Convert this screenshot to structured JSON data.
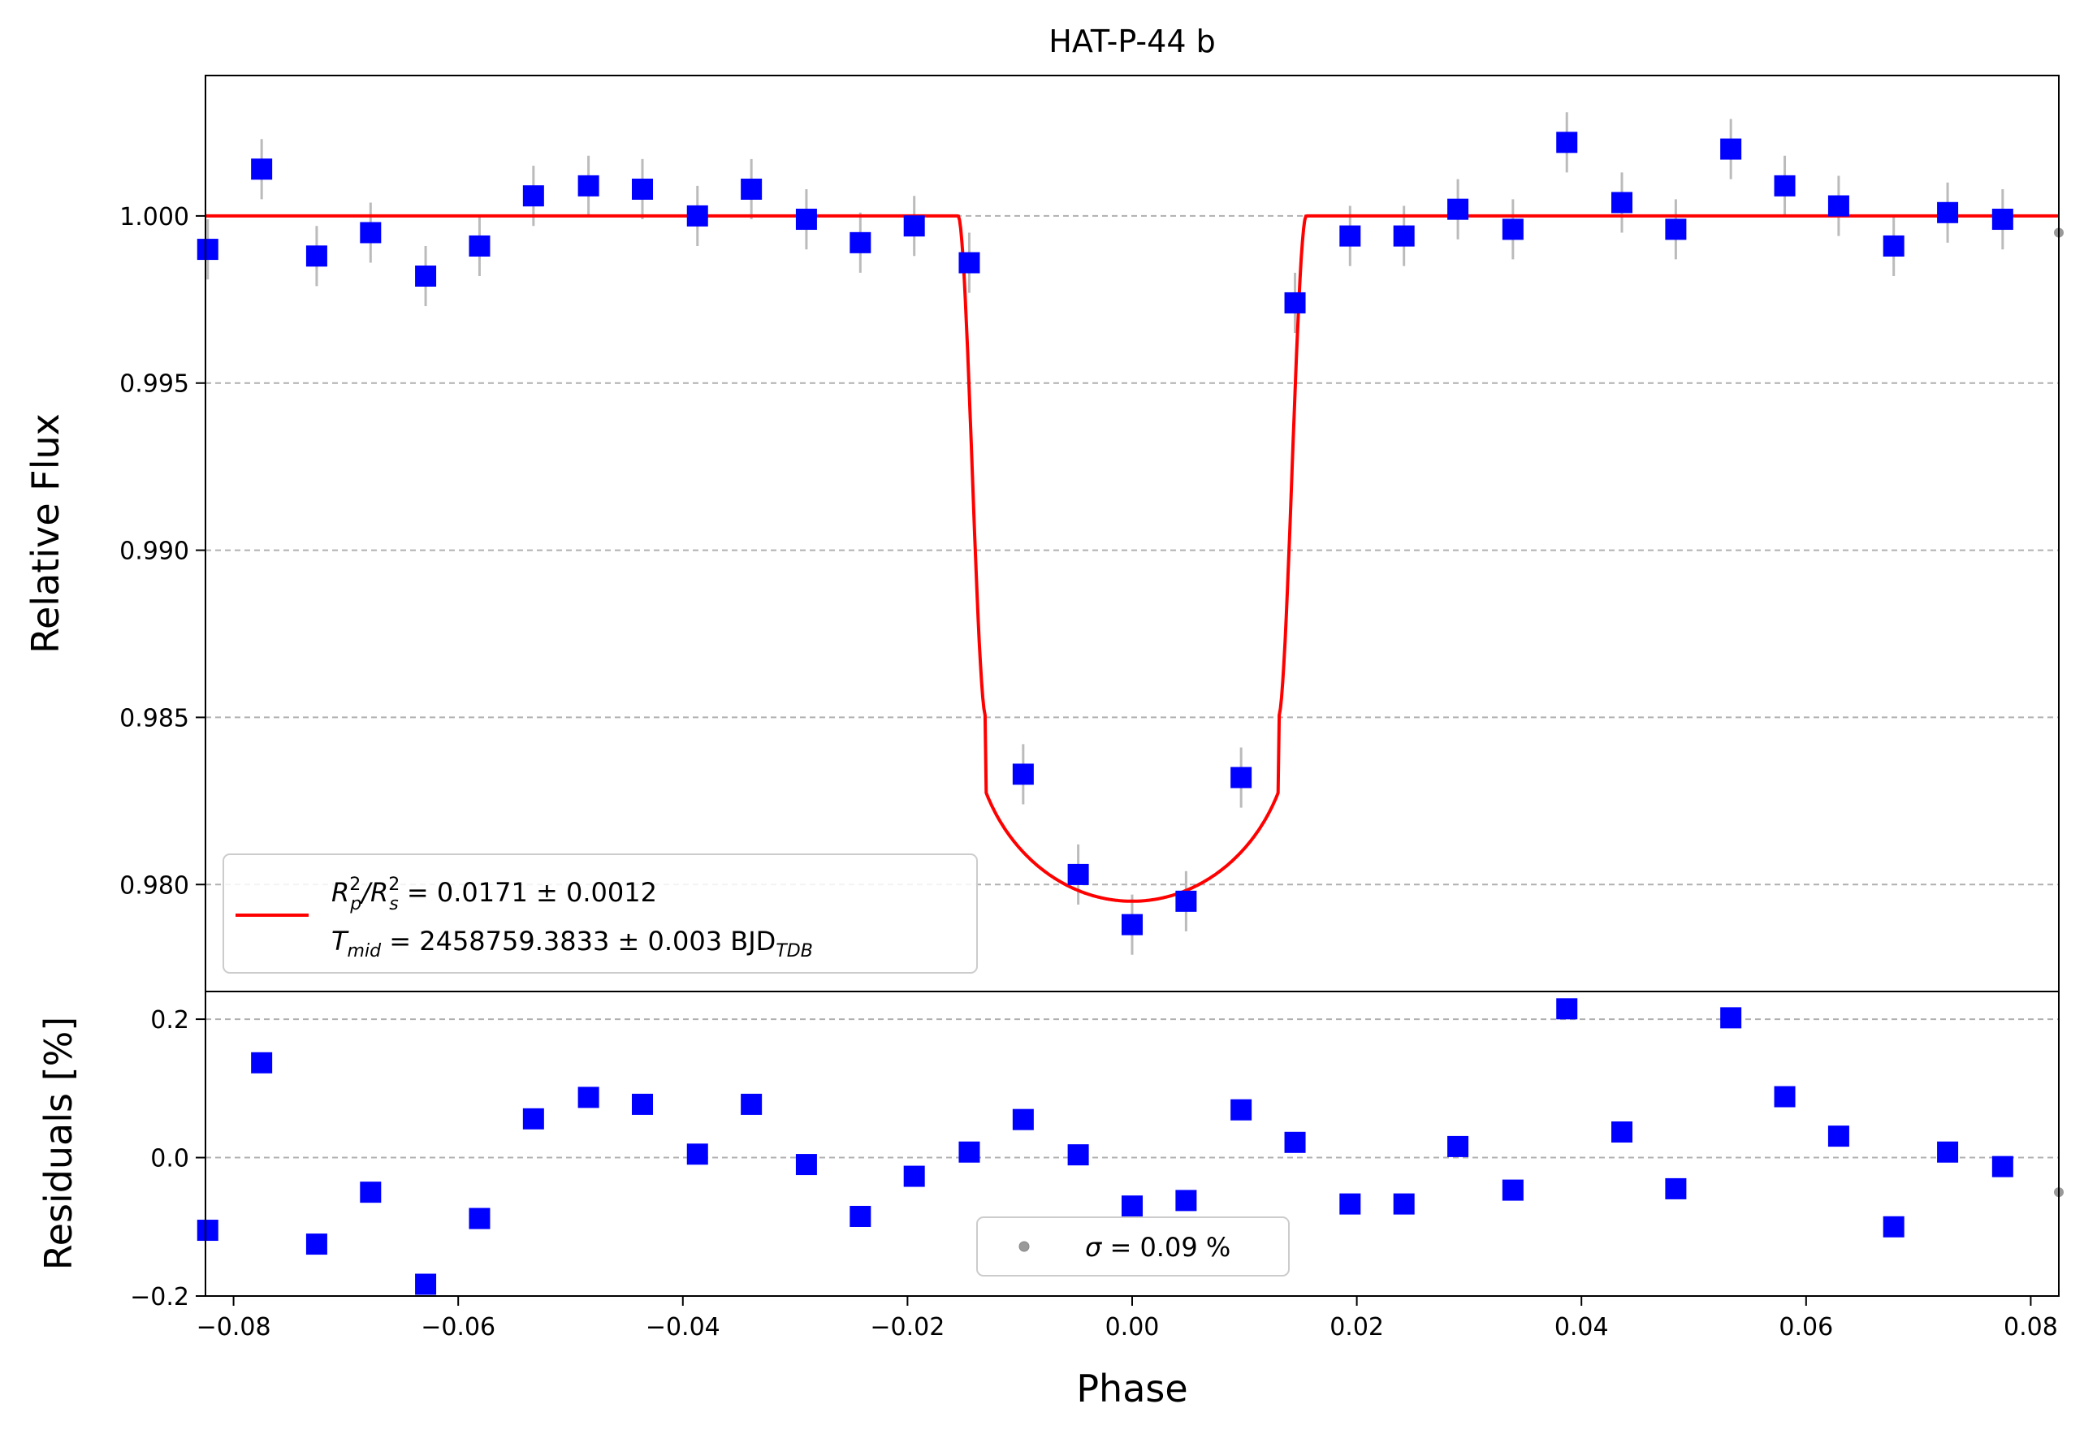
{
  "chart_data": [
    {
      "type": "scatter",
      "panel": "light-curve",
      "title": "HAT-P-44 b",
      "xlabel": "",
      "ylabel": "Relative Flux",
      "xlim": [
        -0.0825,
        0.0825
      ],
      "ylim": [
        0.9768,
        1.0042
      ],
      "grid": "y-dashed",
      "yticks": [
        0.98,
        0.985,
        0.99,
        0.995,
        1.0
      ],
      "ytick_labels": [
        "0.980",
        "0.985",
        "0.990",
        "0.995",
        "1.000"
      ],
      "legend": {
        "placement": "lower-left",
        "line1": "R²p/R²s = 0.0171 ± 0.0012",
        "line1_parts": {
          "r": "R",
          "p_sup": "2",
          "p_sub": "p",
          "sep": "/",
          "s_sup": "2",
          "s_sub": "s",
          "rest": " = 0.0171 ± 0.0012"
        },
        "line2": "Tmid = 2458759.3833 ± 0.003 BJD_TDB",
        "line2_parts": {
          "t": "T",
          "t_sub": "mid",
          "rest": " = 2458759.3833 ± 0.003 BJD",
          "bjd_sub": "TDB"
        }
      },
      "model": {
        "color": "#ff0000",
        "baseline": 1.0,
        "depth": 0.0171,
        "t14": 0.031,
        "ingress": 0.0025
      },
      "series": [
        {
          "marker": "square",
          "color": "#0000ff",
          "errorbar_color": "#bbbbbb",
          "x": [
            -0.0823,
            -0.0775,
            -0.0726,
            -0.0678,
            -0.0629,
            -0.0581,
            -0.0533,
            -0.0484,
            -0.0436,
            -0.0387,
            -0.0339,
            -0.029,
            -0.0242,
            -0.0194,
            -0.0145,
            -0.0097,
            -0.0048,
            0.0,
            0.0048,
            0.0097,
            0.0145,
            0.0194,
            0.0242,
            0.029,
            0.0339,
            0.0387,
            0.0436,
            0.0484,
            0.0533,
            0.0581,
            0.0629,
            0.0678,
            0.0726,
            0.0775
          ],
          "y": [
            0.999,
            1.0014,
            0.9988,
            0.9995,
            0.9982,
            0.9991,
            1.0006,
            1.0009,
            1.0008,
            1.0,
            1.0008,
            0.9999,
            0.9992,
            0.9997,
            0.9986,
            0.9833,
            0.9803,
            0.9788,
            0.9795,
            0.9832,
            0.9974,
            0.9994,
            0.9994,
            1.0002,
            0.9996,
            1.0022,
            1.0004,
            0.9996,
            1.002,
            1.0009,
            1.0003,
            0.9991,
            1.0001,
            0.9999
          ],
          "yerr": 0.0009
        }
      ]
    },
    {
      "type": "scatter",
      "panel": "residuals",
      "xlabel": "Phase",
      "ylabel": "Residuals [%]",
      "xlim": [
        -0.0825,
        0.0825
      ],
      "ylim": [
        -0.2,
        0.24
      ],
      "grid": "y-dashed",
      "xticks": [
        -0.08,
        -0.06,
        -0.04,
        -0.02,
        0.0,
        0.02,
        0.04,
        0.06,
        0.08
      ],
      "xtick_labels": [
        "−0.08",
        "−0.06",
        "−0.04",
        "−0.02",
        "0.00",
        "0.02",
        "0.04",
        "0.06",
        "0.08"
      ],
      "yticks": [
        -0.2,
        0.0,
        0.2
      ],
      "ytick_labels": [
        "−0.2",
        "0.0",
        "0.2"
      ],
      "legend": {
        "placement": "lower-center",
        "marker_color": "#999999",
        "sigma": "σ",
        "rest": " = 0.09 %"
      },
      "series": [
        {
          "marker": "square",
          "color": "#0000ff",
          "x": [
            -0.0823,
            -0.0775,
            -0.0726,
            -0.0678,
            -0.0629,
            -0.0581,
            -0.0533,
            -0.0484,
            -0.0436,
            -0.0387,
            -0.0339,
            -0.029,
            -0.0242,
            -0.0194,
            -0.0145,
            -0.0097,
            -0.0048,
            0.0,
            0.0048,
            0.0097,
            0.0145,
            0.0194,
            0.0242,
            0.029,
            0.0339,
            0.0387,
            0.0436,
            0.0484,
            0.0533,
            0.0581,
            0.0629,
            0.0678,
            0.0726,
            0.0775
          ],
          "y": [
            -0.105,
            0.137,
            -0.125,
            -0.05,
            -0.183,
            -0.088,
            0.056,
            0.087,
            0.077,
            0.005,
            0.077,
            -0.01,
            -0.085,
            -0.027,
            0.008,
            0.055,
            0.004,
            -0.07,
            -0.062,
            0.069,
            0.022,
            -0.067,
            -0.067,
            0.016,
            -0.047,
            0.215,
            0.037,
            -0.045,
            0.202,
            0.088,
            0.031,
            -0.1,
            0.008,
            -0.013
          ]
        }
      ]
    }
  ]
}
